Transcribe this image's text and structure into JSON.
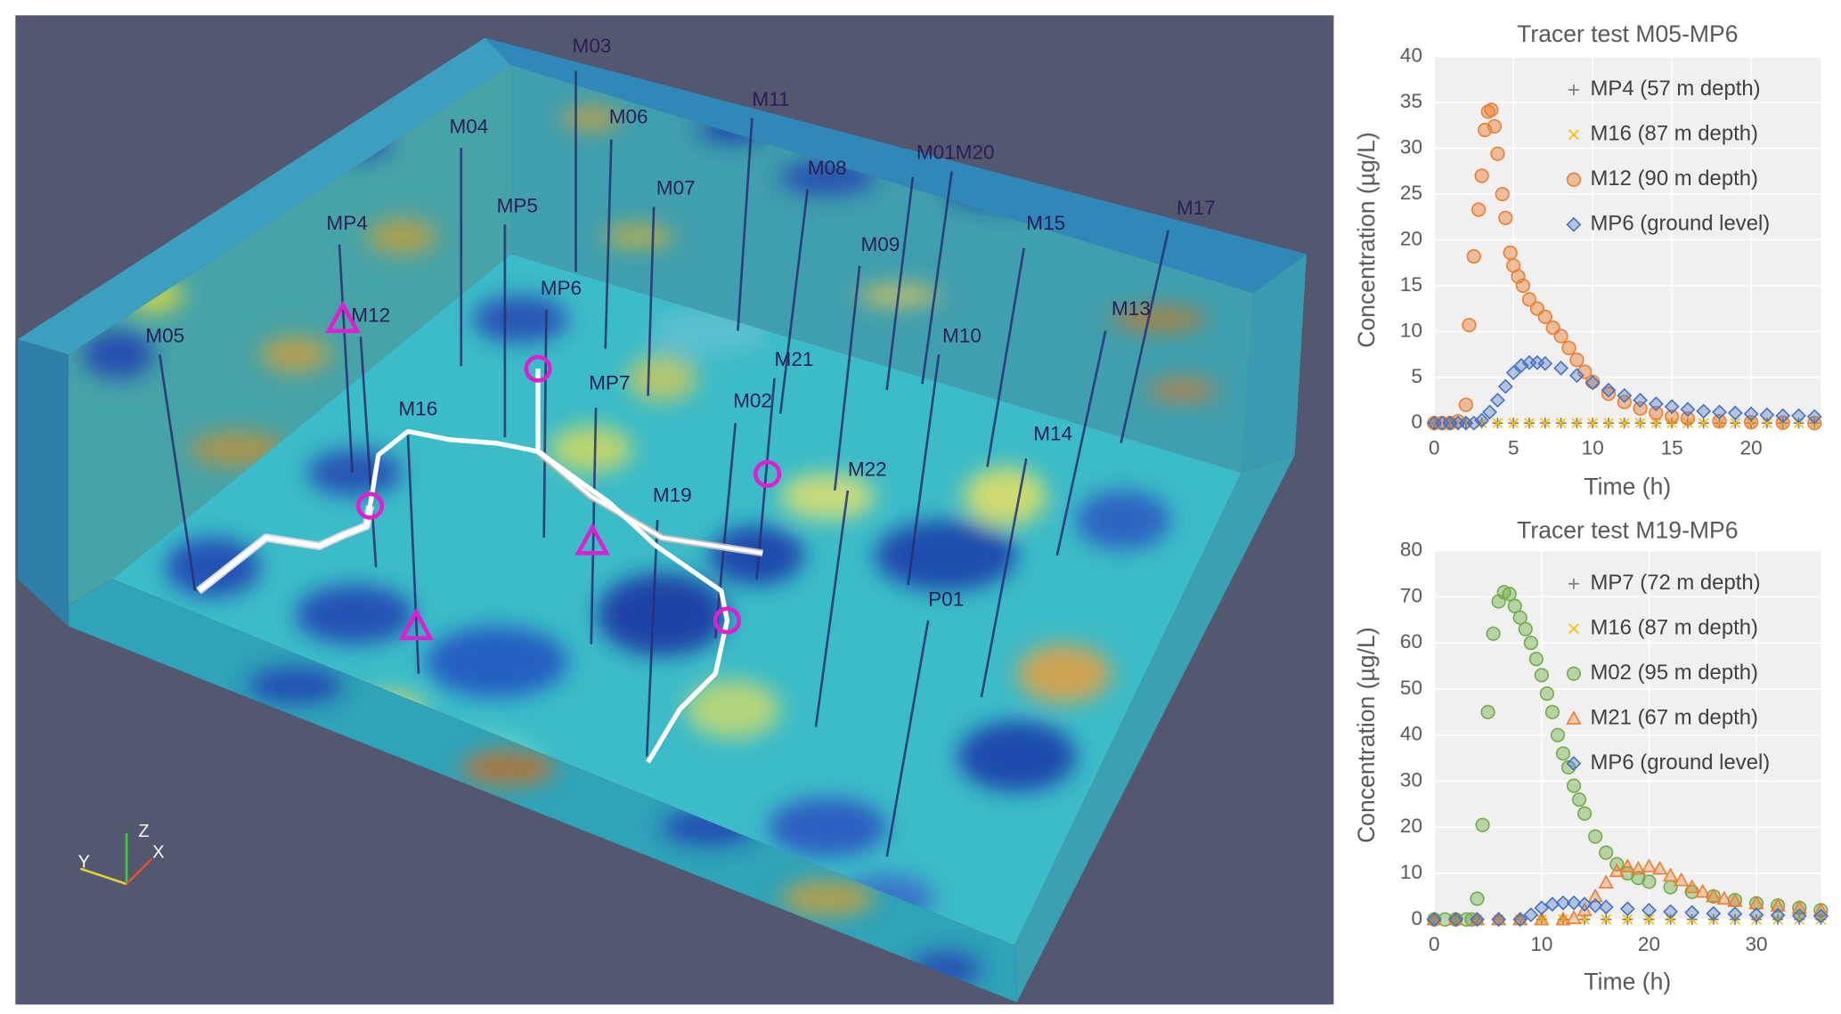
{
  "visualization": {
    "wells": [
      "M03",
      "M04",
      "M06",
      "M11",
      "M07",
      "M08",
      "M01",
      "M20",
      "MP5",
      "MP4",
      "M12",
      "M05",
      "MP6",
      "M09",
      "M15",
      "M17",
      "M13",
      "M21",
      "M10",
      "MP7",
      "M16",
      "M02",
      "M14",
      "M22",
      "M19",
      "P01"
    ],
    "axes_triad": {
      "z": "Z",
      "y": "Y",
      "x": "X"
    }
  },
  "chart_data": [
    {
      "type": "scatter",
      "title": "Tracer test M05-MP6",
      "x_label": "Time (h)",
      "y_label": "Concentration (µg/L)",
      "xlim": [
        0,
        24.4
      ],
      "xticks": [
        0,
        5,
        10,
        15,
        20
      ],
      "ylim": [
        0,
        40
      ],
      "yticks": [
        0,
        5,
        10,
        15,
        20,
        25,
        30,
        35,
        40
      ],
      "grid": true,
      "legend": "upper right",
      "series": [
        {
          "name": "MP4 (57 m depth)",
          "color": "#7f7f7f",
          "marker": "plus",
          "x": [
            0,
            1,
            2,
            3,
            4,
            5,
            6,
            7,
            8,
            9,
            10,
            11,
            12,
            13,
            14,
            15,
            16,
            17,
            18,
            19,
            20,
            21,
            22,
            23,
            24
          ],
          "values": [
            0,
            0,
            0,
            0,
            0,
            0,
            0,
            0,
            0,
            0,
            0,
            0,
            0,
            0,
            0,
            0,
            0,
            0,
            0,
            0,
            0,
            0,
            0,
            0,
            0
          ]
        },
        {
          "name": "M16 (87 m depth)",
          "color": "#ffc000",
          "marker": "x",
          "x": [
            0,
            1,
            2,
            3,
            4,
            5,
            6,
            7,
            8,
            9,
            10,
            11,
            12,
            13,
            14,
            15,
            16,
            17,
            18,
            19,
            20,
            21,
            22,
            23,
            24
          ],
          "values": [
            0,
            0,
            0,
            0,
            0,
            0,
            0,
            0,
            0,
            0,
            0,
            0,
            0,
            0,
            0,
            0,
            0,
            0,
            0,
            0,
            0,
            0,
            0,
            0,
            0
          ]
        },
        {
          "name": "M12 (90 m depth)",
          "color": "#ed7d31",
          "marker": "circle",
          "x": [
            0,
            0.5,
            1,
            1.5,
            2,
            2.2,
            2.5,
            2.8,
            3,
            3.2,
            3.4,
            3.6,
            3.8,
            4,
            4.3,
            4.5,
            4.8,
            5,
            5.3,
            5.6,
            6,
            6.5,
            7,
            7.5,
            8,
            8.5,
            9,
            9.5,
            10,
            11,
            12,
            13,
            14,
            15,
            16,
            18,
            20,
            22,
            24
          ],
          "values": [
            0,
            0,
            0,
            0.2,
            2,
            10.7,
            18.2,
            23.3,
            27,
            32,
            34,
            34.2,
            32.4,
            29.4,
            25,
            22.4,
            18.6,
            17.2,
            16,
            15,
            13.5,
            12.5,
            11.6,
            10.4,
            9.5,
            8.2,
            6.9,
            5.6,
            4.5,
            3.2,
            2.3,
            1.6,
            1.1,
            0.7,
            0.5,
            0.2,
            0.1,
            0.05,
            0
          ]
        },
        {
          "name": "MP6 (ground level)",
          "color": "#4472c4",
          "marker": "diamond",
          "x": [
            0,
            0.5,
            1,
            1.5,
            2,
            2.5,
            3,
            3.5,
            4,
            4.5,
            5,
            5.5,
            6,
            6.5,
            7,
            8,
            9,
            10,
            11,
            12,
            13,
            14,
            15,
            16,
            17,
            18,
            19,
            20,
            21,
            22,
            23,
            24
          ],
          "values": [
            0,
            0,
            0,
            0,
            0,
            0,
            0.3,
            1.2,
            2.5,
            4,
            5.5,
            6.3,
            6.6,
            6.6,
            6.5,
            6,
            5.2,
            4.4,
            3.6,
            3,
            2.5,
            2.1,
            1.8,
            1.5,
            1.3,
            1.2,
            1.1,
            1.0,
            0.9,
            0.8,
            0.8,
            0.7
          ]
        }
      ]
    },
    {
      "type": "scatter",
      "title": "Tracer test M19-MP6",
      "x_label": "Time (h)",
      "y_label": "Concentration (µg/L)",
      "xlim": [
        0,
        36
      ],
      "xticks": [
        0,
        10,
        20,
        30
      ],
      "ylim": [
        0,
        80
      ],
      "yticks": [
        0,
        10,
        20,
        30,
        40,
        50,
        60,
        70,
        80
      ],
      "grid": true,
      "legend": "upper right",
      "series": [
        {
          "name": "MP7 (72 m depth)",
          "color": "#7f7f7f",
          "marker": "plus",
          "x": [
            0,
            2,
            4,
            6,
            8,
            10,
            12,
            14,
            16,
            18,
            20,
            22,
            24,
            26,
            28,
            30,
            32,
            34,
            36
          ],
          "values": [
            0,
            0,
            0,
            0,
            0,
            0,
            0,
            0,
            0,
            0,
            0,
            0,
            0,
            0,
            0,
            0,
            0,
            0,
            0
          ]
        },
        {
          "name": "M16 (87 m depth)",
          "color": "#ffc000",
          "marker": "x",
          "x": [
            0,
            2,
            4,
            6,
            8,
            10,
            12,
            14,
            16,
            18,
            20,
            22,
            24,
            26,
            28,
            30,
            32,
            34,
            36
          ],
          "values": [
            0,
            0,
            0,
            0,
            0,
            0,
            0,
            0,
            0,
            0,
            0,
            0,
            0,
            0,
            0,
            0,
            0,
            0,
            0
          ]
        },
        {
          "name": "M02 (95 m depth)",
          "color": "#70ad47",
          "marker": "circle",
          "x": [
            0,
            1,
            2,
            3,
            3.5,
            4,
            4.5,
            5,
            5.5,
            6,
            6.5,
            7,
            7.5,
            8,
            8.5,
            9,
            9.5,
            10,
            10.5,
            11,
            11.5,
            12,
            12.5,
            13,
            13.5,
            14,
            15,
            16,
            17,
            18,
            19,
            20,
            22,
            24,
            26,
            28,
            30,
            32,
            34,
            36
          ],
          "values": [
            0,
            0,
            0,
            0,
            0,
            4.5,
            20.5,
            45,
            62,
            69,
            71,
            70.6,
            68,
            65.5,
            63,
            60,
            56.5,
            53,
            49,
            45,
            40,
            36,
            33,
            29,
            26,
            23,
            18,
            14.5,
            12,
            10,
            9,
            8.2,
            7,
            6,
            5,
            4.2,
            3.5,
            3,
            2.5,
            2
          ]
        },
        {
          "name": "M21 (67 m depth)",
          "color": "#ed7d31",
          "marker": "triangle",
          "x": [
            0,
            2,
            4,
            6,
            8,
            10,
            12,
            13,
            14,
            15,
            16,
            17,
            18,
            19,
            20,
            21,
            22,
            23,
            24,
            25,
            26,
            27,
            28,
            30,
            32,
            34,
            36
          ],
          "values": [
            0,
            0,
            0,
            0,
            0,
            0,
            0,
            0.3,
            2,
            5,
            8,
            10.5,
            11.5,
            11,
            11.5,
            11,
            9.5,
            8.5,
            7,
            6,
            5,
            4.5,
            4,
            3.5,
            3,
            2.5,
            2
          ]
        },
        {
          "name": "MP6 (ground level)",
          "color": "#4472c4",
          "marker": "diamond",
          "x": [
            0,
            2,
            4,
            6,
            8,
            9,
            10,
            11,
            12,
            13,
            14,
            15,
            16,
            18,
            20,
            22,
            24,
            26,
            28,
            30,
            32,
            34,
            36
          ],
          "values": [
            0,
            0,
            0,
            0,
            0,
            1,
            2.5,
            3.3,
            3.6,
            3.6,
            3.3,
            3,
            2.7,
            2.3,
            2,
            1.7,
            1.5,
            1.3,
            1.2,
            1,
            0.9,
            0.8,
            0.7
          ]
        }
      ]
    }
  ]
}
